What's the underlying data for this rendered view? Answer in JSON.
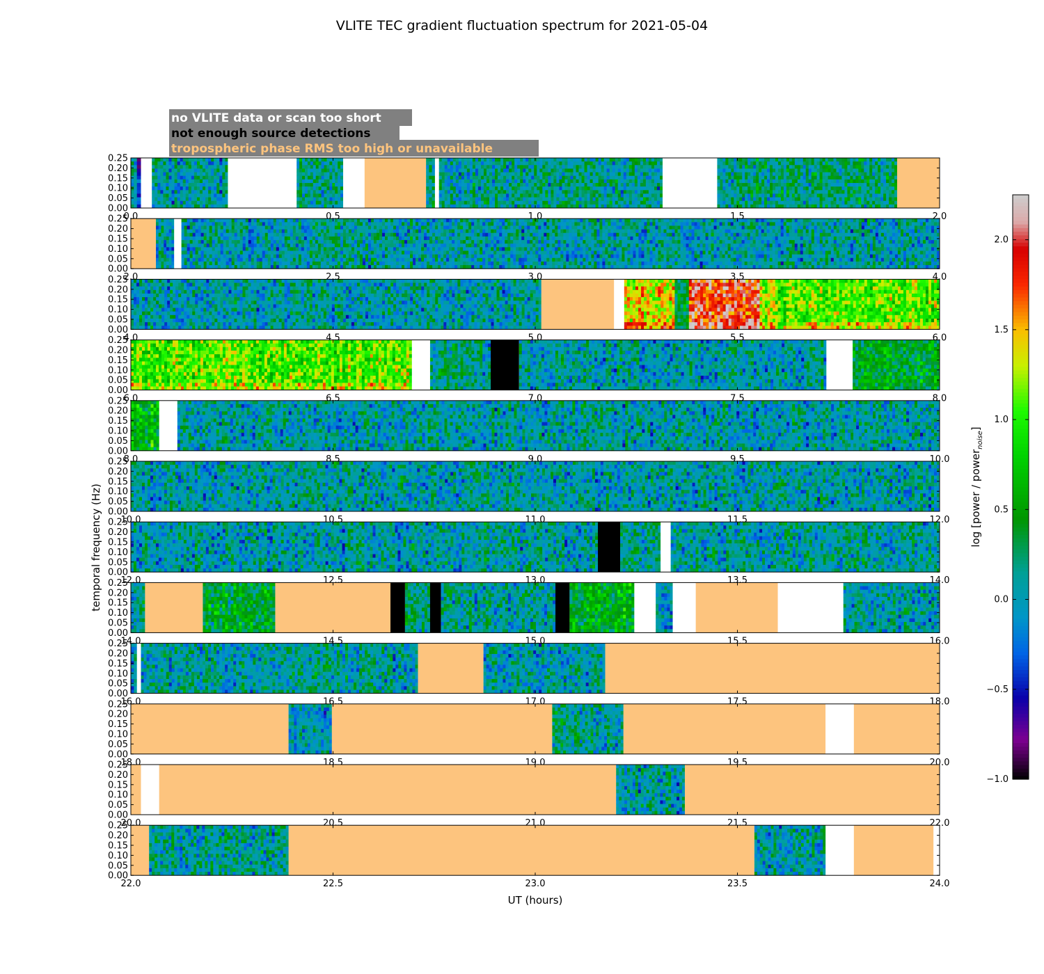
{
  "chart_data": {
    "type": "heatmap",
    "title": "VLITE TEC gradient fluctuation spectrum for 2021-05-04",
    "xlabel": "UT (hours)",
    "ylabel": "temporal frequency (Hz)",
    "colorbar_label": "log [power / power",
    "colorbar_label_sub": "noise",
    "colorbar_label_end": "]",
    "colorbar_range": [
      -1.0,
      2.25
    ],
    "colorbar_ticks": [
      "−1.0",
      "−0.5",
      "0.0",
      "0.5",
      "1.0",
      "1.5",
      "2.0"
    ],
    "colorbar_tick_values": [
      -1.0,
      -0.5,
      0.0,
      0.5,
      1.0,
      1.5,
      2.0
    ],
    "ylim": [
      0,
      0.25
    ],
    "y_ticks": [
      "0.00",
      "0.05",
      "0.10",
      "0.15",
      "0.20",
      "0.25"
    ],
    "legend": [
      {
        "text": "no VLITE data or scan too short",
        "color": "#ffffff"
      },
      {
        "text": "not enough source detections",
        "color": "#000000"
      },
      {
        "text": "tropospheric phase RMS too high or unavailable",
        "color": "#fdc47e"
      }
    ],
    "colors": {
      "no_data": "#ffffff",
      "few_detections": "#000000",
      "troposphere": "#fdc47e"
    },
    "panels": [
      {
        "xlim": [
          0.0,
          2.0
        ],
        "x_ticks": [
          "0.0",
          "0.5",
          "1.0",
          "1.5",
          "2.0"
        ],
        "segments": [
          {
            "s": 0.0,
            "e": 0.015,
            "k": "data",
            "lvl": 0.0
          },
          {
            "s": 0.015,
            "e": 0.025,
            "k": "data",
            "lvl": -0.4
          },
          {
            "s": 0.025,
            "e": 0.052,
            "k": "nodata"
          },
          {
            "s": 0.052,
            "e": 0.24,
            "k": "data",
            "lvl": 0.05
          },
          {
            "s": 0.24,
            "e": 0.41,
            "k": "nodata"
          },
          {
            "s": 0.41,
            "e": 0.525,
            "k": "data",
            "lvl": 0.15
          },
          {
            "s": 0.525,
            "e": 0.578,
            "k": "nodata"
          },
          {
            "s": 0.578,
            "e": 0.73,
            "k": "tropo"
          },
          {
            "s": 0.73,
            "e": 0.752,
            "k": "data",
            "lvl": 0.1
          },
          {
            "s": 0.752,
            "e": 0.762,
            "k": "nodata"
          },
          {
            "s": 0.762,
            "e": 1.315,
            "k": "data",
            "lvl": 0.1
          },
          {
            "s": 1.315,
            "e": 1.45,
            "k": "nodata"
          },
          {
            "s": 1.45,
            "e": 1.895,
            "k": "data",
            "lvl": 0.2
          },
          {
            "s": 1.895,
            "e": 2.0,
            "k": "tropo"
          }
        ]
      },
      {
        "xlim": [
          2.0,
          4.0
        ],
        "x_ticks": [
          "2.0",
          "2.5",
          "3.0",
          "3.5",
          "4.0"
        ],
        "segments": [
          {
            "s": 2.0,
            "e": 2.062,
            "k": "tropo"
          },
          {
            "s": 2.062,
            "e": 2.107,
            "k": "data",
            "lvl": 0.0
          },
          {
            "s": 2.107,
            "e": 2.125,
            "k": "nodata"
          },
          {
            "s": 2.125,
            "e": 4.0,
            "k": "data",
            "lvl": 0.05
          }
        ]
      },
      {
        "xlim": [
          4.0,
          6.0
        ],
        "x_ticks": [
          "4.0",
          "4.5",
          "5.0",
          "5.5",
          "6.0"
        ],
        "segments": [
          {
            "s": 4.0,
            "e": 5.015,
            "k": "data",
            "lvl": 0.05
          },
          {
            "s": 5.015,
            "e": 5.195,
            "k": "tropo"
          },
          {
            "s": 5.195,
            "e": 5.22,
            "k": "nodata"
          },
          {
            "s": 5.22,
            "e": 5.345,
            "k": "data",
            "lvl": 1.35
          },
          {
            "s": 5.345,
            "e": 5.38,
            "k": "data",
            "lvl": 0.3
          },
          {
            "s": 5.38,
            "e": 5.555,
            "k": "data",
            "lvl": 1.85
          },
          {
            "s": 5.555,
            "e": 5.6,
            "k": "data",
            "lvl": 1.2
          },
          {
            "s": 5.6,
            "e": 6.0,
            "k": "data",
            "lvl": 1.05
          }
        ]
      },
      {
        "xlim": [
          6.0,
          8.0
        ],
        "x_ticks": [
          "6.0",
          "6.5",
          "7.0",
          "7.5",
          "8.0"
        ],
        "segments": [
          {
            "s": 6.0,
            "e": 6.695,
            "k": "data",
            "lvl": 1.05
          },
          {
            "s": 6.695,
            "e": 6.74,
            "k": "nodata"
          },
          {
            "s": 6.74,
            "e": 6.89,
            "k": "data",
            "lvl": 0.15
          },
          {
            "s": 6.89,
            "e": 6.96,
            "k": "few"
          },
          {
            "s": 6.96,
            "e": 7.72,
            "k": "data",
            "lvl": 0.05
          },
          {
            "s": 7.72,
            "e": 7.785,
            "k": "nodata"
          },
          {
            "s": 7.785,
            "e": 8.0,
            "k": "data",
            "lvl": 0.45
          }
        ]
      },
      {
        "xlim": [
          8.0,
          10.0
        ],
        "x_ticks": [
          "8.0",
          "8.5",
          "9.0",
          "9.5",
          "10.0"
        ],
        "segments": [
          {
            "s": 8.0,
            "e": 8.07,
            "k": "data",
            "lvl": 0.6
          },
          {
            "s": 8.07,
            "e": 8.115,
            "k": "nodata"
          },
          {
            "s": 8.115,
            "e": 10.0,
            "k": "data",
            "lvl": 0.05
          }
        ]
      },
      {
        "xlim": [
          10.0,
          12.0
        ],
        "x_ticks": [
          "10.0",
          "10.5",
          "11.0",
          "11.5",
          "12.0"
        ],
        "segments": [
          {
            "s": 10.0,
            "e": 12.0,
            "k": "data",
            "lvl": 0.05
          }
        ]
      },
      {
        "xlim": [
          12.0,
          14.0
        ],
        "x_ticks": [
          "12.0",
          "12.5",
          "13.0",
          "13.5",
          "14.0"
        ],
        "segments": [
          {
            "s": 12.0,
            "e": 13.155,
            "k": "data",
            "lvl": 0.05
          },
          {
            "s": 13.155,
            "e": 13.21,
            "k": "few"
          },
          {
            "s": 13.21,
            "e": 13.31,
            "k": "data",
            "lvl": 0.1
          },
          {
            "s": 13.31,
            "e": 13.335,
            "k": "nodata"
          },
          {
            "s": 13.335,
            "e": 14.0,
            "k": "data",
            "lvl": 0.1
          }
        ]
      },
      {
        "xlim": [
          14.0,
          16.0
        ],
        "x_ticks": [
          "14.0",
          "14.5",
          "15.0",
          "15.5",
          "16.0"
        ],
        "segments": [
          {
            "s": 14.0,
            "e": 14.035,
            "k": "data",
            "lvl": 0.05
          },
          {
            "s": 14.035,
            "e": 14.178,
            "k": "tropo"
          },
          {
            "s": 14.178,
            "e": 14.357,
            "k": "data",
            "lvl": 0.4
          },
          {
            "s": 14.357,
            "e": 14.642,
            "k": "tropo"
          },
          {
            "s": 14.642,
            "e": 14.678,
            "k": "few"
          },
          {
            "s": 14.678,
            "e": 14.74,
            "k": "data",
            "lvl": 0.2
          },
          {
            "s": 14.74,
            "e": 14.767,
            "k": "few"
          },
          {
            "s": 14.767,
            "e": 15.05,
            "k": "data",
            "lvl": 0.1
          },
          {
            "s": 15.05,
            "e": 15.085,
            "k": "few"
          },
          {
            "s": 15.085,
            "e": 15.245,
            "k": "data",
            "lvl": 0.55
          },
          {
            "s": 15.245,
            "e": 15.298,
            "k": "nodata"
          },
          {
            "s": 15.298,
            "e": 15.34,
            "k": "data",
            "lvl": 0.0
          },
          {
            "s": 15.34,
            "e": 15.397,
            "k": "nodata"
          },
          {
            "s": 15.397,
            "e": 15.6,
            "k": "tropo"
          },
          {
            "s": 15.6,
            "e": 15.762,
            "k": "nodata"
          },
          {
            "s": 15.762,
            "e": 16.0,
            "k": "data",
            "lvl": 0.05
          }
        ]
      },
      {
        "xlim": [
          16.0,
          18.0
        ],
        "x_ticks": [
          "16.0",
          "16.5",
          "17.0",
          "17.5",
          "18.0"
        ],
        "segments": [
          {
            "s": 16.0,
            "e": 16.015,
            "k": "data",
            "lvl": 0.0
          },
          {
            "s": 16.015,
            "e": 16.025,
            "k": "nodata"
          },
          {
            "s": 16.025,
            "e": 16.71,
            "k": "data",
            "lvl": 0.1
          },
          {
            "s": 16.71,
            "e": 16.872,
            "k": "tropo"
          },
          {
            "s": 16.872,
            "e": 17.173,
            "k": "data",
            "lvl": 0.05
          },
          {
            "s": 17.173,
            "e": 18.0,
            "k": "tropo"
          }
        ]
      },
      {
        "xlim": [
          18.0,
          20.0
        ],
        "x_ticks": [
          "18.0",
          "18.5",
          "19.0",
          "19.5",
          "20.0"
        ],
        "segments": [
          {
            "s": 18.0,
            "e": 18.39,
            "k": "tropo"
          },
          {
            "s": 18.39,
            "e": 18.497,
            "k": "data",
            "lvl": 0.05
          },
          {
            "s": 18.497,
            "e": 19.042,
            "k": "tropo"
          },
          {
            "s": 19.042,
            "e": 19.218,
            "k": "data",
            "lvl": 0.1
          },
          {
            "s": 19.218,
            "e": 19.718,
            "k": "tropo"
          },
          {
            "s": 19.718,
            "e": 19.788,
            "k": "nodata"
          },
          {
            "s": 19.788,
            "e": 20.0,
            "k": "tropo"
          }
        ]
      },
      {
        "xlim": [
          20.0,
          22.0
        ],
        "x_ticks": [
          "20.0",
          "20.5",
          "21.0",
          "21.5",
          "22.0"
        ],
        "segments": [
          {
            "s": 20.0,
            "e": 20.025,
            "k": "tropo"
          },
          {
            "s": 20.025,
            "e": 20.07,
            "k": "nodata"
          },
          {
            "s": 20.07,
            "e": 21.2,
            "k": "tropo"
          },
          {
            "s": 21.2,
            "e": 21.37,
            "k": "data",
            "lvl": 0.05
          },
          {
            "s": 21.37,
            "e": 22.0,
            "k": "tropo"
          }
        ]
      },
      {
        "xlim": [
          22.0,
          24.0
        ],
        "x_ticks": [
          "22.0",
          "22.5",
          "23.0",
          "23.5",
          "24.0"
        ],
        "segments": [
          {
            "s": 22.0,
            "e": 22.045,
            "k": "tropo"
          },
          {
            "s": 22.045,
            "e": 22.39,
            "k": "data",
            "lvl": 0.1
          },
          {
            "s": 22.39,
            "e": 23.542,
            "k": "tropo"
          },
          {
            "s": 23.542,
            "e": 23.718,
            "k": "data",
            "lvl": 0.05
          },
          {
            "s": 23.718,
            "e": 23.788,
            "k": "nodata"
          },
          {
            "s": 23.788,
            "e": 23.985,
            "k": "tropo"
          },
          {
            "s": 23.985,
            "e": 24.0,
            "k": "nodata"
          }
        ]
      }
    ]
  }
}
